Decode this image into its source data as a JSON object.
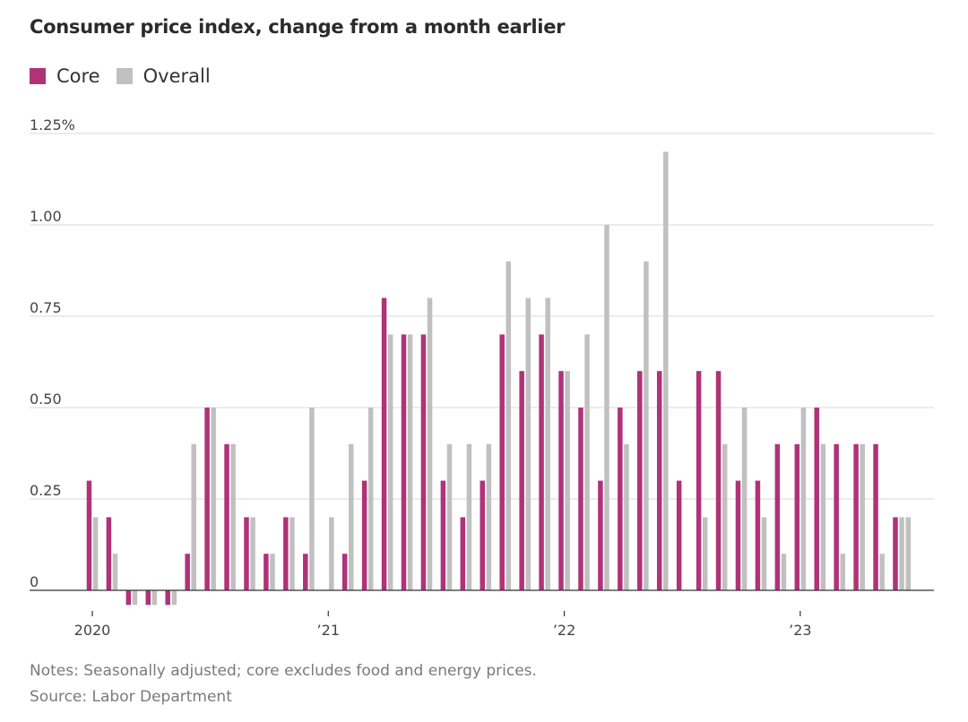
{
  "title": "Consumer price index, change from a month earlier",
  "legend": [
    {
      "label": "Core",
      "color": "#b03278"
    },
    {
      "label": "Overall",
      "color": "#c0c0c0"
    }
  ],
  "notes": "Notes: Seasonally adjusted; core excludes food and energy prices.",
  "source": "Source: Labor Department",
  "chart_data": {
    "type": "bar",
    "y_ticks": [
      {
        "value": 0,
        "label": "0"
      },
      {
        "value": 0.25,
        "label": "0.25"
      },
      {
        "value": 0.5,
        "label": "0.50"
      },
      {
        "value": 0.75,
        "label": "0.75"
      },
      {
        "value": 1.0,
        "label": "1.00"
      },
      {
        "value": 1.25,
        "label": "1.25%"
      }
    ],
    "ylim": [
      -0.05,
      1.25
    ],
    "grid": true,
    "legend_position": "top-left",
    "x_ticks": [
      {
        "index": 0,
        "label": "2020"
      },
      {
        "index": 12,
        "label": "’21"
      },
      {
        "index": 24,
        "label": "’22"
      },
      {
        "index": 36,
        "label": "’23"
      }
    ],
    "categories": [
      "2020-01",
      "2020-02",
      "2020-03",
      "2020-04",
      "2020-05",
      "2020-06",
      "2020-07",
      "2020-08",
      "2020-09",
      "2020-10",
      "2020-11",
      "2020-12",
      "2021-01",
      "2021-02",
      "2021-03",
      "2021-04",
      "2021-05",
      "2021-06",
      "2021-07",
      "2021-08",
      "2021-09",
      "2021-10",
      "2021-11",
      "2021-12",
      "2022-01",
      "2022-02",
      "2022-03",
      "2022-04",
      "2022-05",
      "2022-06",
      "2022-07",
      "2022-08",
      "2022-09",
      "2022-10",
      "2022-11",
      "2022-12",
      "2023-01",
      "2023-02",
      "2023-03",
      "2023-04",
      "2023-05",
      "2023-06"
    ],
    "series": [
      {
        "name": "Core",
        "color": "#b03278",
        "values": [
          0.3,
          0.2,
          -0.04,
          -0.04,
          -0.04,
          0.1,
          0.5,
          0.4,
          0.2,
          0.1,
          0.2,
          0.1,
          0.0,
          0.1,
          0.3,
          0.8,
          0.7,
          0.7,
          0.3,
          0.2,
          0.3,
          0.7,
          0.6,
          0.7,
          0.6,
          0.5,
          0.3,
          0.5,
          0.6,
          0.6,
          0.3,
          0.6,
          0.6,
          0.3,
          0.3,
          0.4,
          0.4,
          0.5,
          0.4,
          0.4,
          0.4,
          0.2
        ]
      },
      {
        "name": "Overall",
        "color": "#c0c0c0",
        "values": [
          0.2,
          0.1,
          -0.04,
          -0.04,
          -0.04,
          0.4,
          0.5,
          0.4,
          0.2,
          0.1,
          0.2,
          0.5,
          0.2,
          0.4,
          0.5,
          0.7,
          0.7,
          0.8,
          0.4,
          0.4,
          0.4,
          0.9,
          0.8,
          0.8,
          0.6,
          0.7,
          1.0,
          0.4,
          0.9,
          1.2,
          0.0,
          0.2,
          0.4,
          0.5,
          0.2,
          0.1,
          0.5,
          0.4,
          0.1,
          0.4,
          0.1,
          0.2
        ]
      }
    ],
    "last_overall_extra": 0.2
  }
}
